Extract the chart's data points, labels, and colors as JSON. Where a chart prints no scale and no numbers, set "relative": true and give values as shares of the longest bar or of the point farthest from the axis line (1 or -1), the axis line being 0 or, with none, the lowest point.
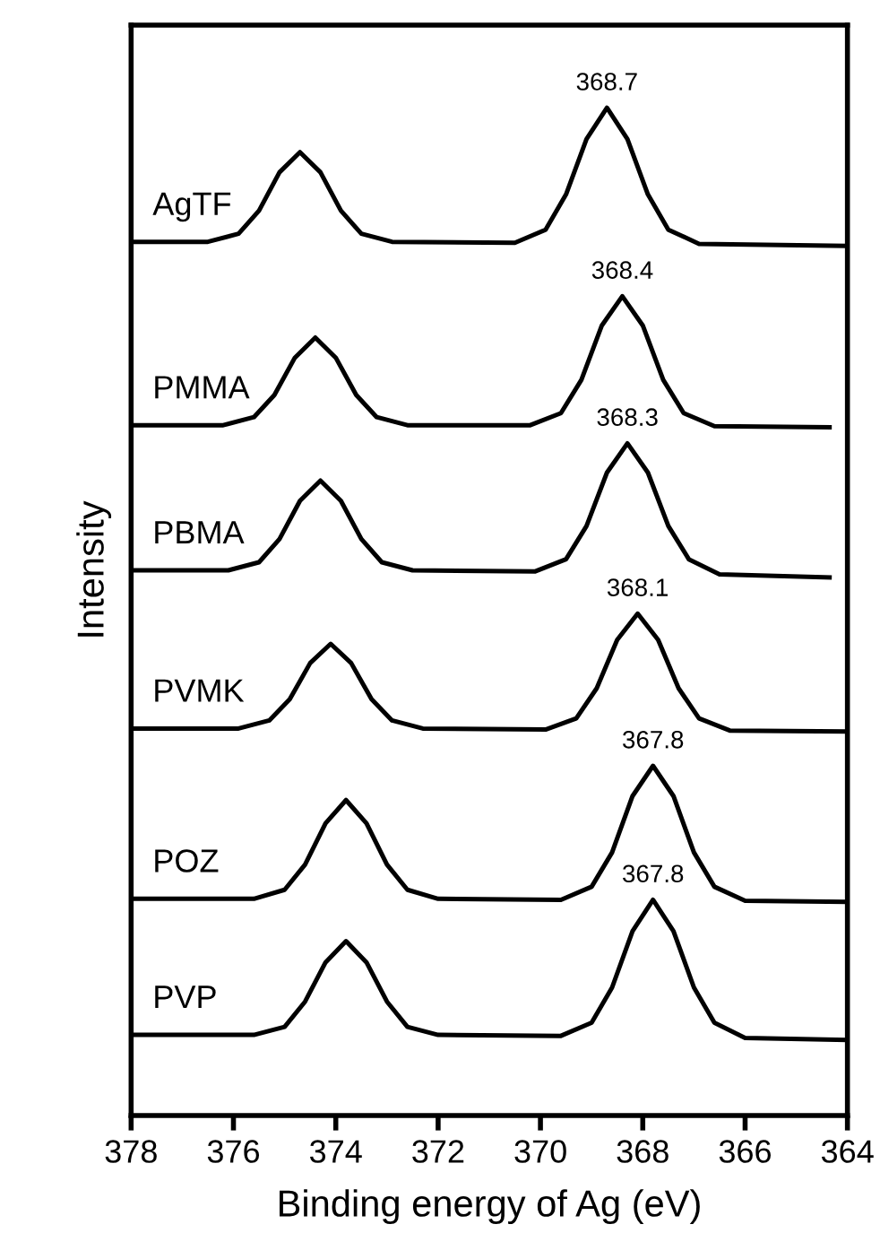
{
  "chart_data": {
    "type": "line",
    "xlabel": "Binding energy of Ag (eV)",
    "ylabel": "Intensity",
    "relative": true,
    "xlim": [
      378,
      364
    ],
    "xticks": [
      378,
      376,
      374,
      372,
      370,
      368,
      366,
      364
    ],
    "tick_labels": "x",
    "legend": false,
    "grid": false,
    "marker": "none",
    "line_style": "solid",
    "series": [
      {
        "name": "AgTF",
        "color": "#000000",
        "x": [
          378,
          376.5,
          375.9,
          375.5,
          375.1,
          374.7,
          374.3,
          373.9,
          373.5,
          372.9,
          370.5,
          369.9,
          369.5,
          369.1,
          368.7,
          368.3,
          367.9,
          367.5,
          366.9,
          364
        ],
        "values": [
          0.867,
          0.867,
          0.875,
          0.898,
          0.936,
          0.956,
          0.936,
          0.898,
          0.875,
          0.867,
          0.866,
          0.879,
          0.914,
          0.969,
          1.0,
          0.969,
          0.914,
          0.879,
          0.865,
          0.863
        ]
      },
      {
        "name": "PMMA",
        "color": "#000000",
        "x": [
          378,
          376.2,
          375.6,
          375.2,
          374.8,
          374.4,
          374.0,
          373.6,
          373.2,
          372.6,
          370.2,
          369.6,
          369.2,
          368.8,
          368.4,
          368.0,
          367.6,
          367.2,
          366.6,
          364.35
        ],
        "values": [
          0.685,
          0.685,
          0.693,
          0.715,
          0.752,
          0.772,
          0.752,
          0.715,
          0.693,
          0.685,
          0.685,
          0.697,
          0.73,
          0.784,
          0.813,
          0.784,
          0.73,
          0.697,
          0.684,
          0.683
        ]
      },
      {
        "name": "PBMA",
        "color": "#000000",
        "x": [
          378,
          376.1,
          375.5,
          375.1,
          374.7,
          374.3,
          373.9,
          373.5,
          373.1,
          372.5,
          370.1,
          369.5,
          369.1,
          368.7,
          368.3,
          367.9,
          367.5,
          367.1,
          366.5,
          364.35
        ],
        "values": [
          0.541,
          0.541,
          0.549,
          0.572,
          0.61,
          0.63,
          0.61,
          0.572,
          0.549,
          0.541,
          0.54,
          0.552,
          0.585,
          0.638,
          0.667,
          0.638,
          0.585,
          0.552,
          0.537,
          0.534
        ]
      },
      {
        "name": "PVMK",
        "color": "#000000",
        "x": [
          378,
          375.9,
          375.3,
          374.9,
          374.5,
          374.1,
          373.7,
          373.3,
          372.9,
          372.3,
          369.9,
          369.3,
          368.9,
          368.5,
          368.1,
          367.7,
          367.3,
          366.9,
          366.3,
          364
        ],
        "values": [
          0.384,
          0.384,
          0.392,
          0.413,
          0.449,
          0.468,
          0.449,
          0.413,
          0.392,
          0.384,
          0.383,
          0.394,
          0.424,
          0.472,
          0.498,
          0.472,
          0.424,
          0.394,
          0.382,
          0.381
        ]
      },
      {
        "name": "POZ",
        "color": "#000000",
        "x": [
          378,
          375.6,
          375.0,
          374.6,
          374.2,
          373.8,
          373.4,
          373.0,
          372.6,
          372.0,
          369.6,
          369.0,
          368.6,
          368.2,
          367.8,
          367.4,
          367.0,
          366.6,
          366.0,
          364
        ],
        "values": [
          0.215,
          0.215,
          0.224,
          0.249,
          0.29,
          0.313,
          0.29,
          0.249,
          0.224,
          0.215,
          0.214,
          0.227,
          0.261,
          0.317,
          0.347,
          0.317,
          0.261,
          0.227,
          0.213,
          0.212
        ]
      },
      {
        "name": "PVP",
        "color": "#000000",
        "x": [
          378,
          375.6,
          375.0,
          374.6,
          374.2,
          373.8,
          373.4,
          373.0,
          372.6,
          372.0,
          369.6,
          369.0,
          368.6,
          368.2,
          367.8,
          367.4,
          367.0,
          366.6,
          366.0,
          364
        ],
        "values": [
          0.08,
          0.08,
          0.088,
          0.113,
          0.152,
          0.173,
          0.152,
          0.113,
          0.088,
          0.08,
          0.079,
          0.092,
          0.127,
          0.183,
          0.214,
          0.183,
          0.127,
          0.092,
          0.077,
          0.075
        ]
      }
    ],
    "annotations": [
      {
        "text": "368.7",
        "x": 368.7,
        "y": 1.0
      },
      {
        "text": "368.4",
        "x": 368.4,
        "y": 0.813
      },
      {
        "text": "368.3",
        "x": 368.3,
        "y": 0.667
      },
      {
        "text": "368.1",
        "x": 368.1,
        "y": 0.498
      },
      {
        "text": "367.8",
        "x": 367.8,
        "y": 0.347
      },
      {
        "text": "367.8",
        "x": 367.8,
        "y": 0.214
      }
    ]
  }
}
